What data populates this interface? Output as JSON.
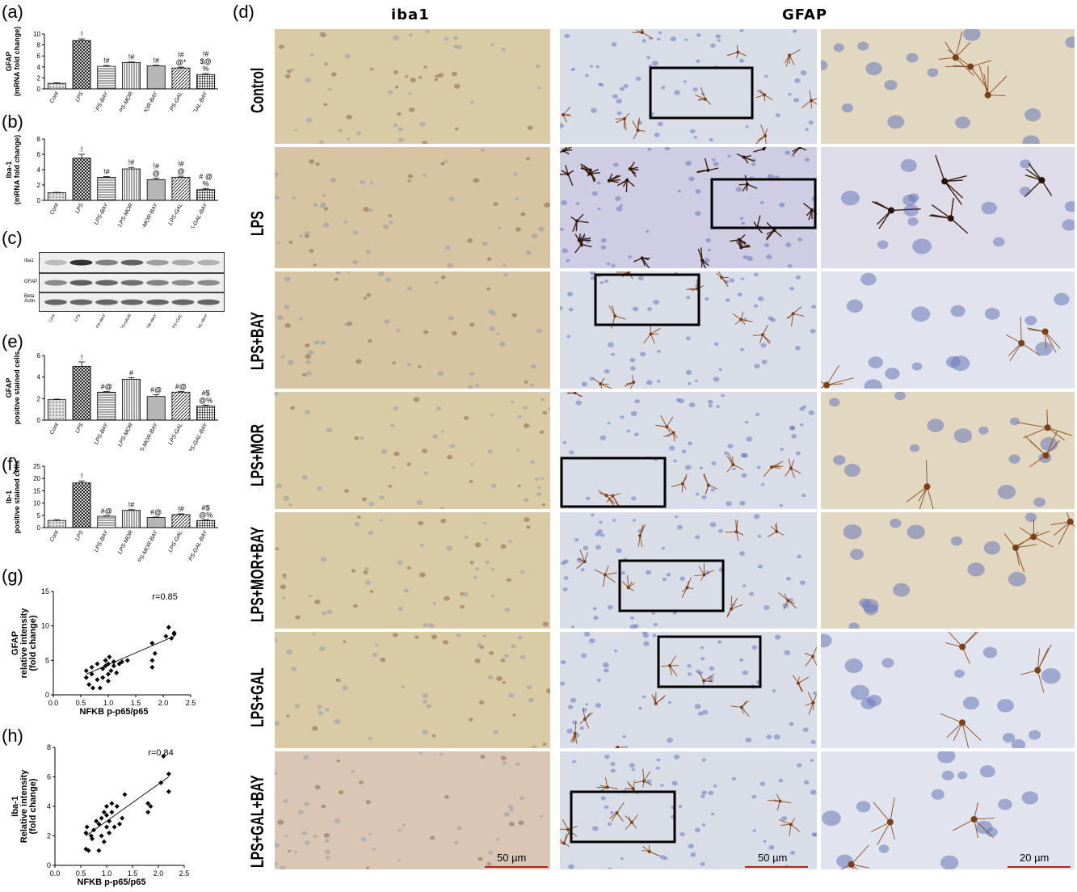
{
  "panel_labels": {
    "a": "(a)",
    "b": "(b)",
    "c": "(c)",
    "d": "(d)",
    "e": "(e)",
    "f": "(f)",
    "g": "(g)",
    "h": "(h)"
  },
  "micro": {
    "col_headers": [
      "iba1",
      "GFAP"
    ],
    "rows": [
      "Control",
      "LPS",
      "LPS+BAY",
      "LPS+MOR",
      "LPS+MOR+BAY",
      "LPS+GAL",
      "LPS+GAL+BAY"
    ],
    "scale_bars": [
      "50 µm",
      "50 µm",
      "20 µm"
    ]
  },
  "gel": {
    "row_labels": [
      "Iba1",
      "GFAP",
      "Beta\nActin"
    ],
    "lanes": [
      "Cont",
      "LPS",
      "LPS+BAY",
      "LPS+MOR",
      "LPS+MOR+BAY",
      "LPS+GAL",
      "LPS+GAL+BAY"
    ],
    "colors": {
      "iba1": "#262626",
      "gfap": "#3a3a3a",
      "actin": "#2c2c2c"
    }
  },
  "chart_data": [
    {
      "id": "a",
      "type": "bar",
      "ylabel": "GFAP\n(mRNA fold change)",
      "categories": [
        "Cont",
        "LPS",
        "LPS-BAY",
        "LPS-MOR",
        "LPS-MOR-BAY",
        "LPS-GAL",
        "LPS-GAL-BAY"
      ],
      "values": [
        1.0,
        8.8,
        4.1,
        4.8,
        4.2,
        3.8,
        2.6
      ],
      "errors": [
        0.1,
        0.3,
        0.15,
        0.1,
        0.1,
        0.15,
        0.2
      ],
      "annotations": [
        "",
        "!",
        "!#",
        "!#",
        "!#",
        "!#\n@*",
        "!#\n$@\n%"
      ],
      "ylim": [
        0,
        10
      ],
      "yticks": [
        0,
        2,
        4,
        6,
        8,
        10
      ]
    },
    {
      "id": "b",
      "type": "bar",
      "ylabel": "Iba-1\n(mRNA fold change)",
      "categories": [
        "Cont",
        "LPS",
        "LPS-BAY",
        "LPS-MOR",
        "LPS-MOR-BAY",
        "LPS-GAL",
        "LPS-GAL-BAY"
      ],
      "values": [
        1.0,
        5.5,
        3.0,
        4.1,
        2.7,
        3.0,
        1.4
      ],
      "errors": [
        0.05,
        0.5,
        0.1,
        0.2,
        0.2,
        0.15,
        0.15
      ],
      "annotations": [
        "",
        "!",
        "!#",
        "!#",
        "!#\n@",
        "!#\n@",
        "# @\n%"
      ],
      "ylim": [
        0,
        8
      ],
      "yticks": [
        0,
        2,
        4,
        6,
        8
      ]
    },
    {
      "id": "e",
      "type": "bar",
      "ylabel": "GFAP\npositive stained cells",
      "categories": [
        "Cont",
        "LPS",
        "LPS-BAY",
        "LPS-MOR",
        "LPS-MOR-BAY",
        "LPS-GAL",
        "LPS-GAL-BAY"
      ],
      "values": [
        1.9,
        5.0,
        2.6,
        3.8,
        2.2,
        2.6,
        1.3
      ],
      "errors": [
        0.05,
        0.4,
        0.05,
        0.15,
        0.15,
        0.05,
        0.1
      ],
      "annotations": [
        "",
        "!",
        "#@",
        "#",
        "#@",
        "#@",
        "#$\n@%"
      ],
      "ylim": [
        0,
        6
      ],
      "yticks": [
        0,
        2,
        4,
        6
      ]
    },
    {
      "id": "f",
      "type": "bar",
      "ylabel": "Ib-1\npositive stained cells",
      "categories": [
        "Cont",
        "LPS",
        "LPS-BAY",
        "LPS-MOR",
        "LPS-MOR-BAY",
        "LPS-GAL",
        "LPS-GAL-BAY"
      ],
      "values": [
        2.9,
        18.2,
        4.6,
        7.0,
        4.1,
        5.3,
        2.9
      ],
      "errors": [
        0.3,
        0.8,
        0.2,
        0.3,
        0.2,
        0.3,
        0.3
      ],
      "annotations": [
        "",
        "!",
        "#@",
        "!#",
        "#@",
        "!#",
        "#$\n@%"
      ],
      "ylim": [
        0,
        25
      ],
      "yticks": [
        0,
        5,
        10,
        15,
        20,
        25
      ]
    },
    {
      "id": "g",
      "type": "scatter",
      "xlabel": "NFKB p-p65/p65",
      "ylabel": "GFAP\nrelative intensity\n(fold change)",
      "annotation": "r=0.85",
      "xlim": [
        0,
        2.5
      ],
      "ylim": [
        0,
        15
      ],
      "xticks": [
        0.0,
        0.5,
        1.0,
        1.5,
        2.0,
        2.5
      ],
      "yticks": [
        0,
        5,
        10,
        15
      ],
      "points": [
        [
          0.6,
          3.5
        ],
        [
          0.6,
          2.5
        ],
        [
          0.65,
          1.5
        ],
        [
          0.7,
          4.0
        ],
        [
          0.7,
          3.0
        ],
        [
          0.72,
          1.0
        ],
        [
          0.8,
          2.2
        ],
        [
          0.8,
          4.5
        ],
        [
          0.85,
          1.0
        ],
        [
          0.9,
          3.8
        ],
        [
          0.9,
          2.5
        ],
        [
          0.95,
          4.2
        ],
        [
          0.95,
          5.0
        ],
        [
          1.0,
          3.0
        ],
        [
          1.0,
          4.5
        ],
        [
          1.0,
          2.0
        ],
        [
          1.02,
          5.5
        ],
        [
          1.05,
          3.5
        ],
        [
          1.1,
          4.2
        ],
        [
          1.1,
          4.8
        ],
        [
          1.15,
          3.2
        ],
        [
          1.2,
          4.5
        ],
        [
          1.25,
          4.8
        ],
        [
          1.35,
          5.0
        ],
        [
          1.8,
          4.0
        ],
        [
          1.8,
          5.0
        ],
        [
          1.85,
          6.0
        ],
        [
          1.8,
          7.5
        ],
        [
          2.05,
          8.5
        ],
        [
          2.1,
          9.8
        ],
        [
          2.15,
          8.2
        ],
        [
          2.2,
          9.0
        ],
        [
          2.2,
          8.8
        ]
      ],
      "fit": [
        [
          0.6,
          3.0
        ],
        [
          2.2,
          8.5
        ]
      ]
    },
    {
      "id": "h",
      "type": "scatter",
      "xlabel": "NFKB p-p65/p65",
      "ylabel": "Iba-1\nRelative intensity\n(fold change)",
      "annotation": "r=0.84",
      "xlim": [
        0,
        2.5
      ],
      "ylim": [
        0,
        8
      ],
      "xticks": [
        0.0,
        0.5,
        1.0,
        1.5,
        2.0,
        2.5
      ],
      "yticks": [
        0,
        2,
        4,
        6,
        8
      ],
      "points": [
        [
          0.6,
          2.2
        ],
        [
          0.6,
          1.1
        ],
        [
          0.62,
          2.6
        ],
        [
          0.65,
          1.0
        ],
        [
          0.7,
          2.0
        ],
        [
          0.72,
          1.8
        ],
        [
          0.75,
          2.4
        ],
        [
          0.8,
          3.0
        ],
        [
          0.85,
          1.0
        ],
        [
          0.85,
          2.8
        ],
        [
          0.9,
          3.2
        ],
        [
          0.9,
          2.0
        ],
        [
          0.95,
          1.6
        ],
        [
          0.95,
          3.6
        ],
        [
          1.0,
          2.6
        ],
        [
          1.0,
          3.4
        ],
        [
          1.0,
          4.0
        ],
        [
          1.05,
          2.2
        ],
        [
          1.05,
          3.0
        ],
        [
          1.1,
          4.2
        ],
        [
          1.1,
          3.6
        ],
        [
          1.15,
          2.6
        ],
        [
          1.2,
          4.0
        ],
        [
          1.25,
          2.8
        ],
        [
          1.3,
          3.2
        ],
        [
          1.35,
          4.8
        ],
        [
          1.8,
          3.6
        ],
        [
          1.8,
          4.2
        ],
        [
          1.85,
          4.0
        ],
        [
          2.05,
          5.6
        ],
        [
          2.1,
          7.4
        ],
        [
          2.2,
          6.2
        ],
        [
          2.2,
          5.0
        ]
      ],
      "fit": [
        [
          0.6,
          2.0
        ],
        [
          2.2,
          6.0
        ]
      ]
    }
  ]
}
